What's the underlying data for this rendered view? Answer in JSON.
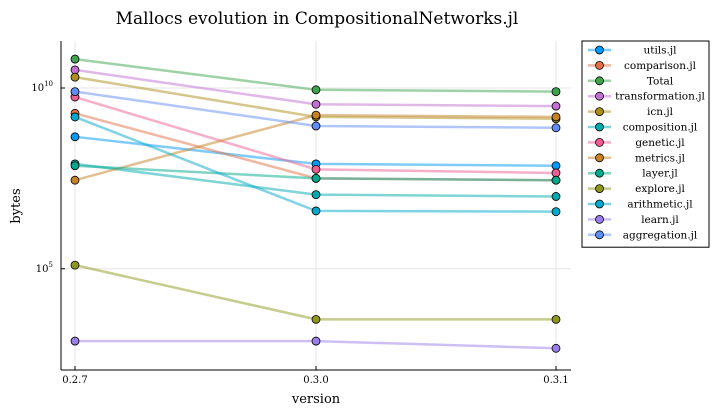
{
  "chart_data": {
    "type": "line",
    "title": "Mallocs evolution in CompositionalNetworks.jl",
    "xlabel": "version",
    "ylabel": "bytes",
    "categories": [
      "0.2.7",
      "0.3.0",
      "0.3.1"
    ],
    "y_scale": "log10",
    "ylim_log10": [
      2.2,
      11.3
    ],
    "y_ticks": [
      {
        "value_log10": 10,
        "label": "10",
        "exponent": "10"
      },
      {
        "value_log10": 5,
        "label": "10",
        "exponent": "5"
      }
    ],
    "grid": true,
    "legend_position": "right",
    "series": [
      {
        "name": "utils.jl",
        "color": "#009af9",
        "values_log10": [
          8.65,
          7.9,
          7.85
        ]
      },
      {
        "name": "comparison.jl",
        "color": "#e26f46",
        "values_log10": [
          9.3,
          7.5,
          7.45
        ]
      },
      {
        "name": "Total",
        "color": "#3da44d",
        "values_log10": [
          10.8,
          9.95,
          9.9
        ]
      },
      {
        "name": "transformation.jl",
        "color": "#c271d2",
        "values_log10": [
          10.5,
          9.55,
          9.5
        ]
      },
      {
        "name": "icn.jl",
        "color": "#ac8e18",
        "values_log10": [
          10.3,
          9.2,
          9.15
        ]
      },
      {
        "name": "composition.jl",
        "color": "#00a9ad",
        "values_log10": [
          7.9,
          7.05,
          7.0
        ]
      },
      {
        "name": "genetic.jl",
        "color": "#ed5e93",
        "values_log10": [
          9.75,
          7.75,
          7.65
        ]
      },
      {
        "name": "metrics.jl",
        "color": "#c68225",
        "values_log10": [
          7.45,
          9.25,
          9.2
        ]
      },
      {
        "name": "layer.jl",
        "color": "#00a98d",
        "values_log10": [
          7.85,
          7.5,
          7.45
        ]
      },
      {
        "name": "explore.jl",
        "color": "#8e971d",
        "values_log10": [
          5.1,
          3.6,
          3.6
        ]
      },
      {
        "name": "arithmetic.jl",
        "color": "#00a8cb",
        "values_log10": [
          9.2,
          6.6,
          6.58
        ]
      },
      {
        "name": "learn.jl",
        "color": "#9b7fe9",
        "values_log10": [
          3.0,
          3.0,
          2.8
        ]
      },
      {
        "name": "aggregation.jl",
        "color": "#618df6",
        "values_log10": [
          9.9,
          8.95,
          8.9
        ]
      }
    ]
  }
}
